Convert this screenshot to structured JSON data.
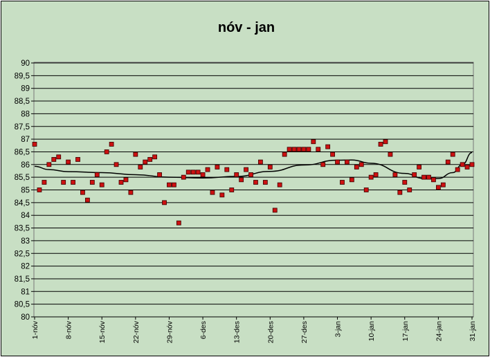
{
  "chart_data": {
    "type": "scatter",
    "title": "nóv - jan",
    "xlabel": "",
    "ylabel": "",
    "ylim": [
      80,
      90
    ],
    "ystep": 0.5,
    "grid": true,
    "legend": "none",
    "yticks": [
      "80",
      "80,5",
      "81",
      "81,5",
      "82",
      "82,5",
      "83",
      "83,5",
      "84",
      "84,5",
      "85",
      "85,5",
      "86",
      "86,5",
      "87",
      "87,5",
      "88",
      "88,5",
      "89",
      "89,5",
      "90"
    ],
    "xticks": [
      {
        "day": 0,
        "label": "1-nóv"
      },
      {
        "day": 7,
        "label": "8-nóv"
      },
      {
        "day": 14,
        "label": "15-nóv"
      },
      {
        "day": 21,
        "label": "22-nóv"
      },
      {
        "day": 28,
        "label": "29-nóv"
      },
      {
        "day": 35,
        "label": "6-des"
      },
      {
        "day": 42,
        "label": "13-des"
      },
      {
        "day": 49,
        "label": "20-des"
      },
      {
        "day": 56,
        "label": "27-des"
      },
      {
        "day": 63,
        "label": "3-jan"
      },
      {
        "day": 70,
        "label": "10-jan"
      },
      {
        "day": 77,
        "label": "17-jan"
      },
      {
        "day": 84,
        "label": "24-jan"
      },
      {
        "day": 91,
        "label": "31-jan"
      }
    ],
    "xlim": [
      0,
      91
    ],
    "series": [
      {
        "marker_color": "#cc1111",
        "points": [
          [
            0,
            86.8
          ],
          [
            1,
            85.0
          ],
          [
            2,
            85.3
          ],
          [
            3,
            86.0
          ],
          [
            4,
            86.2
          ],
          [
            5,
            86.3
          ],
          [
            6,
            85.3
          ],
          [
            7,
            86.1
          ],
          [
            8,
            85.3
          ],
          [
            9,
            86.2
          ],
          [
            10,
            84.9
          ],
          [
            11,
            84.6
          ],
          [
            12,
            85.3
          ],
          [
            13,
            85.6
          ],
          [
            14,
            85.2
          ],
          [
            15,
            86.5
          ],
          [
            16,
            86.8
          ],
          [
            17,
            86.0
          ],
          [
            18,
            85.3
          ],
          [
            19,
            85.4
          ],
          [
            20,
            84.9
          ],
          [
            21,
            86.4
          ],
          [
            22,
            85.9
          ],
          [
            23,
            86.1
          ],
          [
            24,
            86.2
          ],
          [
            25,
            86.3
          ],
          [
            26,
            85.6
          ],
          [
            27,
            84.5
          ],
          [
            28,
            85.2
          ],
          [
            29,
            85.2
          ],
          [
            30,
            83.7
          ],
          [
            31,
            85.5
          ],
          [
            32,
            85.7
          ],
          [
            33,
            85.7
          ],
          [
            34,
            85.7
          ],
          [
            35,
            85.6
          ],
          [
            36,
            85.8
          ],
          [
            37,
            84.9
          ],
          [
            38,
            85.9
          ],
          [
            39,
            84.8
          ],
          [
            40,
            85.8
          ],
          [
            41,
            85.0
          ],
          [
            42,
            85.6
          ],
          [
            43,
            85.4
          ],
          [
            44,
            85.8
          ],
          [
            45,
            85.6
          ],
          [
            46,
            85.3
          ],
          [
            47,
            86.1
          ],
          [
            48,
            85.3
          ],
          [
            49,
            85.9
          ],
          [
            50,
            84.2
          ],
          [
            51,
            85.2
          ],
          [
            52,
            86.4
          ],
          [
            53,
            86.6
          ],
          [
            54,
            86.6
          ],
          [
            55,
            86.6
          ],
          [
            56,
            86.6
          ],
          [
            57,
            86.6
          ],
          [
            58,
            86.9
          ],
          [
            59,
            86.6
          ],
          [
            60,
            86.0
          ],
          [
            61,
            86.7
          ],
          [
            62,
            86.4
          ],
          [
            63,
            86.1
          ],
          [
            64,
            85.3
          ],
          [
            65,
            86.1
          ],
          [
            66,
            85.4
          ],
          [
            67,
            85.9
          ],
          [
            68,
            86.0
          ],
          [
            69,
            85.0
          ],
          [
            70,
            85.5
          ],
          [
            71,
            85.6
          ],
          [
            72,
            86.8
          ],
          [
            73,
            86.9
          ],
          [
            74,
            86.4
          ],
          [
            75,
            85.6
          ],
          [
            76,
            84.9
          ],
          [
            77,
            85.3
          ],
          [
            78,
            85.0
          ],
          [
            79,
            85.6
          ],
          [
            80,
            85.9
          ],
          [
            81,
            85.5
          ],
          [
            82,
            85.5
          ],
          [
            83,
            85.4
          ],
          [
            84,
            85.1
          ],
          [
            85,
            85.2
          ],
          [
            86,
            86.1
          ],
          [
            87,
            86.4
          ],
          [
            88,
            85.8
          ],
          [
            89,
            86.0
          ],
          [
            90,
            85.9
          ],
          [
            91,
            86.0
          ]
        ]
      }
    ],
    "trendline": {
      "type": "polynomial",
      "color": "#000000",
      "points": [
        [
          0,
          85.93
        ],
        [
          3,
          85.8
        ],
        [
          7,
          85.72
        ],
        [
          14,
          85.68
        ],
        [
          21,
          85.6
        ],
        [
          28,
          85.5
        ],
        [
          35,
          85.47
        ],
        [
          42,
          85.53
        ],
        [
          49,
          85.73
        ],
        [
          56,
          85.98
        ],
        [
          63,
          86.17
        ],
        [
          66,
          86.18
        ],
        [
          70,
          86.05
        ],
        [
          77,
          85.65
        ],
        [
          81,
          85.45
        ],
        [
          84,
          85.45
        ],
        [
          87,
          85.68
        ],
        [
          89,
          86.0
        ],
        [
          91,
          86.47
        ]
      ]
    }
  }
}
